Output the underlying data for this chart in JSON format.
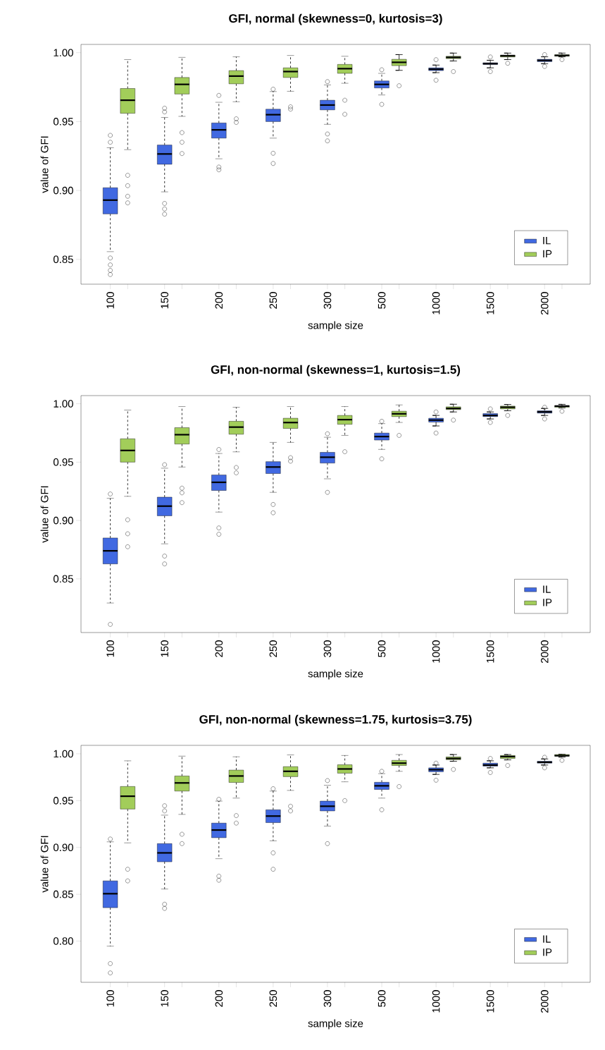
{
  "chart_data": [
    {
      "type": "box",
      "title": "GFI, normal (skewness=0, kurtosis=3)",
      "xlabel": "sample size",
      "ylabel": "value of GFI",
      "categories": [
        "100",
        "150",
        "200",
        "250",
        "300",
        "500",
        "1000",
        "1500",
        "2000"
      ],
      "ylim": [
        0.832,
        1.006
      ],
      "yticks": [
        {
          "value": 0.85,
          "label": "0.85"
        },
        {
          "value": 0.9,
          "label": "0.90"
        },
        {
          "value": 0.95,
          "label": "0.95"
        },
        {
          "value": 1.0,
          "label": "1.00"
        }
      ],
      "legend": "bottom right",
      "marker": "circle",
      "series": [
        {
          "name": "IL",
          "color": "#4169e1",
          "boxes": [
            {
              "low": 0.8556,
              "q1": 0.883,
              "median": 0.893,
              "q3": 0.902,
              "high": 0.931,
              "outliers": [
                0.94,
                0.935,
                0.851,
                0.846,
                0.842,
                0.839
              ]
            },
            {
              "low": 0.899,
              "q1": 0.919,
              "median": 0.9265,
              "q3": 0.933,
              "high": 0.953,
              "outliers": [
                0.9597,
                0.957,
                0.8906,
                0.8866,
                0.8828
              ]
            },
            {
              "low": 0.923,
              "q1": 0.938,
              "median": 0.944,
              "q3": 0.949,
              "high": 0.964,
              "outliers": [
                0.969,
                0.917,
                0.915
              ]
            },
            {
              "low": 0.938,
              "q1": 0.95,
              "median": 0.955,
              "q3": 0.959,
              "high": 0.9718,
              "outliers": [
                0.9735,
                0.927,
                0.9196
              ]
            },
            {
              "low": 0.948,
              "q1": 0.9585,
              "median": 0.962,
              "q3": 0.9655,
              "high": 0.9766,
              "outliers": [
                0.979,
                0.941,
                0.936
              ]
            },
            {
              "low": 0.9693,
              "q1": 0.9744,
              "median": 0.977,
              "q3": 0.9795,
              "high": 0.985,
              "outliers": [
                0.9876,
                0.9625
              ]
            },
            {
              "low": 0.9855,
              "q1": 0.987,
              "median": 0.988,
              "q3": 0.989,
              "high": 0.991,
              "outliers": [
                0.9949,
                0.98
              ]
            },
            {
              "low": 0.989,
              "q1": 0.9915,
              "median": 0.992,
              "q3": 0.9927,
              "high": 0.9945,
              "outliers": [
                0.9969,
                0.9863
              ]
            },
            {
              "low": 0.992,
              "q1": 0.9935,
              "median": 0.9944,
              "q3": 0.9952,
              "high": 0.997,
              "outliers": [
                0.9986,
                0.99
              ]
            }
          ]
        },
        {
          "name": "IP",
          "color": "#a2cd5a",
          "boxes": [
            {
              "low": 0.9296,
              "q1": 0.956,
              "median": 0.9655,
              "q3": 0.974,
              "high": 0.995,
              "outliers": [
                0.911,
                0.9035,
                0.8958,
                0.891
              ]
            },
            {
              "low": 0.9538,
              "q1": 0.97,
              "median": 0.977,
              "q3": 0.982,
              "high": 0.9966,
              "outliers": [
                0.942,
                0.935,
                0.9268
              ]
            },
            {
              "low": 0.9644,
              "q1": 0.9774,
              "median": 0.983,
              "q3": 0.987,
              "high": 0.997,
              "outliers": [
                0.952,
                0.9494
              ]
            },
            {
              "low": 0.972,
              "q1": 0.982,
              "median": 0.9863,
              "q3": 0.989,
              "high": 0.998,
              "outliers": [
                0.9607,
                0.959
              ]
            },
            {
              "low": 0.9778,
              "q1": 0.985,
              "median": 0.9884,
              "q3": 0.9915,
              "high": 0.9974,
              "outliers": [
                0.9655,
                0.9553
              ]
            },
            {
              "low": 0.9872,
              "q1": 0.9906,
              "median": 0.993,
              "q3": 0.9952,
              "high": 0.9986,
              "outliers": [
                0.976
              ]
            },
            {
              "low": 0.994,
              "q1": 0.9957,
              "median": 0.9966,
              "q3": 0.9974,
              "high": 0.9997,
              "outliers": [
                0.9863
              ]
            },
            {
              "low": 0.995,
              "q1": 0.9969,
              "median": 0.9977,
              "q3": 0.9983,
              "high": 0.9997,
              "outliers": [
                0.9923
              ]
            },
            {
              "low": 0.997,
              "q1": 0.9975,
              "median": 0.998,
              "q3": 0.9985,
              "high": 0.9997,
              "outliers": [
                0.995
              ]
            }
          ]
        }
      ]
    },
    {
      "type": "box",
      "title": "GFI, non-normal (skewness=1, kurtosis=1.5)",
      "xlabel": "sample size",
      "ylabel": "value of GFI",
      "categories": [
        "100",
        "150",
        "200",
        "250",
        "300",
        "500",
        "1000",
        "1500",
        "2000"
      ],
      "ylim": [
        0.804,
        1.007
      ],
      "yticks": [
        {
          "value": 0.85,
          "label": "0.85"
        },
        {
          "value": 0.9,
          "label": "0.90"
        },
        {
          "value": 0.95,
          "label": "0.95"
        },
        {
          "value": 1.0,
          "label": "1.00"
        }
      ],
      "legend": "bottom right",
      "marker": "circle",
      "series": [
        {
          "name": "IL",
          "color": "#4169e1",
          "boxes": [
            {
              "low": 0.8293,
              "q1": 0.8628,
              "median": 0.874,
              "q3": 0.885,
              "high": 0.919,
              "outliers": [
                0.9227,
                0.811
              ]
            },
            {
              "low": 0.88,
              "q1": 0.904,
              "median": 0.9123,
              "q3": 0.92,
              "high": 0.9448,
              "outliers": [
                0.9478,
                0.8695,
                0.8628
              ]
            },
            {
              "low": 0.9072,
              "q1": 0.9257,
              "median": 0.9327,
              "q3": 0.939,
              "high": 0.9574,
              "outliers": [
                0.9608,
                0.8936,
                0.8882
              ]
            },
            {
              "low": 0.9241,
              "q1": 0.9402,
              "median": 0.9458,
              "q3": 0.9504,
              "high": 0.9669,
              "outliers": [
                0.9137,
                0.9066
              ]
            },
            {
              "low": 0.9357,
              "q1": 0.9492,
              "median": 0.9542,
              "q3": 0.9584,
              "high": 0.9713,
              "outliers": [
                0.9743,
                0.9241
              ]
            },
            {
              "low": 0.9609,
              "q1": 0.9689,
              "median": 0.9719,
              "q3": 0.9749,
              "high": 0.983,
              "outliers": [
                0.985,
                0.9528
              ]
            },
            {
              "low": 0.981,
              "q1": 0.9843,
              "median": 0.986,
              "q3": 0.9876,
              "high": 0.99,
              "outliers": [
                0.993,
                0.9749
              ]
            },
            {
              "low": 0.987,
              "q1": 0.989,
              "median": 0.99,
              "q3": 0.9916,
              "high": 0.993,
              "outliers": [
                0.9956,
                0.984
              ]
            },
            {
              "low": 0.99,
              "q1": 0.992,
              "median": 0.993,
              "q3": 0.994,
              "high": 0.996,
              "outliers": [
                0.997,
                0.987
              ]
            }
          ]
        },
        {
          "name": "IP",
          "color": "#a2cd5a",
          "boxes": [
            {
              "low": 0.9207,
              "q1": 0.95,
              "median": 0.96,
              "q3": 0.97,
              "high": 0.9946,
              "outliers": [
                0.9006,
                0.8886,
                0.8775
              ]
            },
            {
              "low": 0.9458,
              "q1": 0.9655,
              "median": 0.9735,
              "q3": 0.9795,
              "high": 0.9976,
              "outliers": [
                0.9277,
                0.9237,
                0.9153
              ]
            },
            {
              "low": 0.9588,
              "q1": 0.9739,
              "median": 0.98,
              "q3": 0.985,
              "high": 0.997,
              "outliers": [
                0.9454,
                0.9408
              ]
            },
            {
              "low": 0.9669,
              "q1": 0.9789,
              "median": 0.9839,
              "q3": 0.9876,
              "high": 0.9976,
              "outliers": [
                0.9538,
                0.9508
              ]
            },
            {
              "low": 0.9729,
              "q1": 0.9824,
              "median": 0.9864,
              "q3": 0.99,
              "high": 0.9976,
              "outliers": [
                0.9589
              ]
            },
            {
              "low": 0.984,
              "q1": 0.989,
              "median": 0.9914,
              "q3": 0.9936,
              "high": 0.999,
              "outliers": [
                0.9729
              ]
            },
            {
              "low": 0.993,
              "q1": 0.995,
              "median": 0.996,
              "q3": 0.9974,
              "high": 0.9996,
              "outliers": [
                0.986
              ]
            },
            {
              "low": 0.994,
              "q1": 0.9956,
              "median": 0.997,
              "q3": 0.998,
              "high": 0.9994,
              "outliers": [
                0.99
              ]
            },
            {
              "low": 0.9965,
              "q1": 0.997,
              "median": 0.998,
              "q3": 0.9984,
              "high": 0.9995,
              "outliers": [
                0.9936
              ]
            }
          ]
        }
      ]
    },
    {
      "type": "box",
      "title": "GFI, non-normal (skewness=1.75, kurtosis=3.75)",
      "xlabel": "sample size",
      "ylabel": "value of GFI",
      "categories": [
        "100",
        "150",
        "200",
        "250",
        "300",
        "500",
        "1000",
        "1500",
        "2000"
      ],
      "ylim": [
        0.756,
        1.009
      ],
      "yticks": [
        {
          "value": 0.8,
          "label": "0.80"
        },
        {
          "value": 0.85,
          "label": "0.85"
        },
        {
          "value": 0.9,
          "label": "0.90"
        },
        {
          "value": 0.95,
          "label": "0.95"
        },
        {
          "value": 1.0,
          "label": "1.00"
        }
      ],
      "legend": "bottom right",
      "marker": "circle",
      "series": [
        {
          "name": "IL",
          "color": "#4169e1",
          "boxes": [
            {
              "low": 0.7946,
              "q1": 0.8357,
              "median": 0.8506,
              "q3": 0.8643,
              "high": 0.906,
              "outliers": [
                0.909,
                0.776,
                0.766
              ]
            },
            {
              "low": 0.8556,
              "q1": 0.8847,
              "median": 0.8942,
              "q3": 0.9041,
              "high": 0.9345,
              "outliers": [
                0.9445,
                0.939,
                0.8394,
                0.8349
              ]
            },
            {
              "low": 0.888,
              "q1": 0.9104,
              "median": 0.9186,
              "q3": 0.926,
              "high": 0.9495,
              "outliers": [
                0.9514,
                0.8693,
                0.865
              ]
            },
            {
              "low": 0.9071,
              "q1": 0.9265,
              "median": 0.9335,
              "q3": 0.9402,
              "high": 0.9602,
              "outliers": [
                0.9627,
                0.8942,
                0.8767
              ]
            },
            {
              "low": 0.9228,
              "q1": 0.939,
              "median": 0.944,
              "q3": 0.9495,
              "high": 0.9664,
              "outliers": [
                0.9714,
                0.9041
              ]
            },
            {
              "low": 0.9527,
              "q1": 0.9619,
              "median": 0.9658,
              "q3": 0.9696,
              "high": 0.9788,
              "outliers": [
                0.9813,
                0.9402
              ]
            },
            {
              "low": 0.978,
              "q1": 0.9808,
              "median": 0.983,
              "q3": 0.985,
              "high": 0.988,
              "outliers": [
                0.99,
                0.9718
              ]
            },
            {
              "low": 0.985,
              "q1": 0.9868,
              "median": 0.988,
              "q3": 0.99,
              "high": 0.9925,
              "outliers": [
                0.995,
                0.98
              ]
            },
            {
              "low": 0.988,
              "q1": 0.99,
              "median": 0.991,
              "q3": 0.992,
              "high": 0.9945,
              "outliers": [
                0.9963,
                0.985
              ]
            }
          ]
        },
        {
          "name": "IP",
          "color": "#a2cd5a",
          "boxes": [
            {
              "low": 0.9049,
              "q1": 0.941,
              "median": 0.9547,
              "q3": 0.9651,
              "high": 0.9925,
              "outliers": [
                0.8767,
                0.8643
              ]
            },
            {
              "low": 0.9353,
              "q1": 0.9602,
              "median": 0.9689,
              "q3": 0.9763,
              "high": 0.9975,
              "outliers": [
                0.9141,
                0.9041
              ]
            },
            {
              "low": 0.9527,
              "q1": 0.9694,
              "median": 0.9763,
              "q3": 0.9826,
              "high": 0.9968,
              "outliers": [
                0.934,
                0.926
              ]
            },
            {
              "low": 0.9609,
              "q1": 0.9756,
              "median": 0.9813,
              "q3": 0.9863,
              "high": 0.9988,
              "outliers": [
                0.944,
                0.939
              ]
            },
            {
              "low": 0.9701,
              "q1": 0.9793,
              "median": 0.9838,
              "q3": 0.9883,
              "high": 0.9982,
              "outliers": [
                0.95
              ]
            },
            {
              "low": 0.9813,
              "q1": 0.9875,
              "median": 0.99,
              "q3": 0.993,
              "high": 0.9992,
              "outliers": [
                0.965
              ]
            },
            {
              "low": 0.992,
              "q1": 0.9937,
              "median": 0.995,
              "q3": 0.9967,
              "high": 0.9992,
              "outliers": [
                0.9833
              ]
            },
            {
              "low": 0.9935,
              "q1": 0.995,
              "median": 0.997,
              "q3": 0.9982,
              "high": 0.9992,
              "outliers": [
                0.9875
              ]
            },
            {
              "low": 0.9965,
              "q1": 0.9975,
              "median": 0.998,
              "q3": 0.9992,
              "high": 0.9995,
              "outliers": [
                0.993
              ]
            }
          ]
        }
      ]
    }
  ]
}
